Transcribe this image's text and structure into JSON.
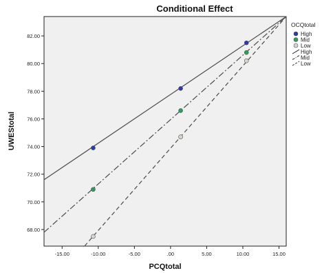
{
  "chart_data": {
    "type": "scatter",
    "title": "Conditional Effect",
    "xlabel": "PCQtotal",
    "ylabel": "UWEStotal",
    "xlim": [
      -17.5,
      16
    ],
    "ylim": [
      66.8,
      83.4
    ],
    "x_ticks": [
      -15,
      -10,
      -5,
      0,
      5,
      10,
      15
    ],
    "x_tick_labels": [
      "-15.00",
      "-10.00",
      "-5.00",
      ".00",
      "5.00",
      "10.00",
      "15.00"
    ],
    "y_ticks": [
      68,
      70,
      72,
      74,
      76,
      78,
      80,
      82
    ],
    "y_tick_labels": [
      "68.00",
      "70.00",
      "72.00",
      "74.00",
      "76.00",
      "78.00",
      "80.00",
      "82.00"
    ],
    "grid": false,
    "legend": {
      "title": "OCQtotal",
      "placement": "right",
      "markers": [
        {
          "label": "High",
          "color": "#2b3aa8"
        },
        {
          "label": "Mid",
          "color": "#2e9c5a"
        },
        {
          "label": "Low",
          "color": "#d8d6cc"
        }
      ],
      "lines": [
        {
          "label": "High",
          "style": "solid"
        },
        {
          "label": "Mid",
          "style": "dashdot"
        },
        {
          "label": "Low",
          "style": "dashed"
        }
      ]
    },
    "series": [
      {
        "name": "High",
        "color": "#2b3aa8",
        "line_style": "solid",
        "points": [
          [
            -10.7,
            73.9
          ],
          [
            1.4,
            78.2
          ],
          [
            10.5,
            81.5
          ]
        ],
        "fit_line": [
          [
            -17.5,
            71.6
          ],
          [
            16,
            83.4
          ]
        ]
      },
      {
        "name": "Mid",
        "color": "#2e9c5a",
        "line_style": "dashdot",
        "points": [
          [
            -10.7,
            70.9
          ],
          [
            1.4,
            76.6
          ],
          [
            10.5,
            80.8
          ]
        ],
        "fit_line": [
          [
            -17.5,
            67.8
          ],
          [
            16,
            83.4
          ]
        ]
      },
      {
        "name": "Low",
        "color": "#d8d6cc",
        "line_style": "dashed",
        "points": [
          [
            -10.7,
            67.5
          ],
          [
            1.4,
            74.7
          ],
          [
            10.5,
            80.2
          ]
        ],
        "fit_line": [
          [
            -11.9,
            66.8
          ],
          [
            16,
            83.4
          ]
        ]
      }
    ]
  }
}
